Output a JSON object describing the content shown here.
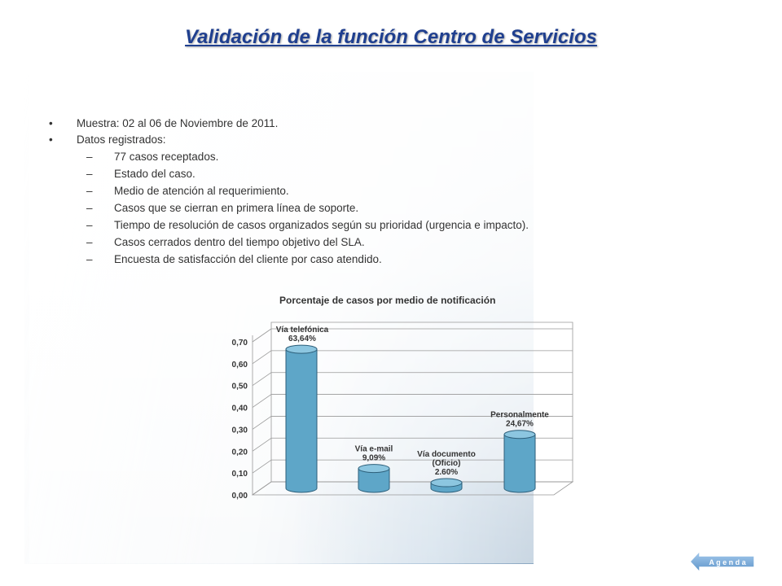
{
  "slide": {
    "title": "Validación de la función Centro de Servicios",
    "bullets": [
      {
        "level": 1,
        "marker": "•",
        "text": "Muestra: 02 al 06 de Noviembre de 2011."
      },
      {
        "level": 1,
        "marker": "•",
        "text": "Datos registrados:"
      },
      {
        "level": 2,
        "marker": "–",
        "text": "77 casos receptados."
      },
      {
        "level": 2,
        "marker": "–",
        "text": "Estado del caso."
      },
      {
        "level": 2,
        "marker": "–",
        "text": "Medio de atención al requerimiento."
      },
      {
        "level": 2,
        "marker": "–",
        "text": "Casos que se cierran en primera línea de soporte."
      },
      {
        "level": 2,
        "marker": "–",
        "text": "Tiempo de resolución de casos organizados según su prioridad (urgencia e impacto)."
      },
      {
        "level": 2,
        "marker": "–",
        "text": "Casos cerrados dentro del tiempo objetivo del SLA."
      },
      {
        "level": 2,
        "marker": "–",
        "text": "Encuesta de satisfacción del cliente por caso atendido."
      }
    ]
  },
  "chart_data": {
    "type": "bar",
    "title": "Porcentaje de casos por medio de notificación",
    "categories": [
      "Vía telefónica",
      "Vía e-mail",
      "Vía documento (Oficio)",
      "Personalmente"
    ],
    "values": [
      0.6364,
      0.0909,
      0.026,
      0.2467
    ],
    "data_labels": [
      [
        "Vía telefónica",
        "63,64%"
      ],
      [
        "Vía e-mail",
        "9,09%"
      ],
      [
        "Vía documento",
        "(Oficio)",
        "2.60%"
      ],
      [
        "Personalmente",
        "24,67%"
      ]
    ],
    "yticks": [
      "0,00",
      "0,10",
      "0,20",
      "0,30",
      "0,40",
      "0,50",
      "0,60",
      "0,70"
    ],
    "ylim": [
      0,
      0.7
    ],
    "grid": true,
    "bar_color": "#5ea6c8"
  },
  "agenda_button": {
    "label": "A g e n d a",
    "color": "#6fa7d6"
  }
}
